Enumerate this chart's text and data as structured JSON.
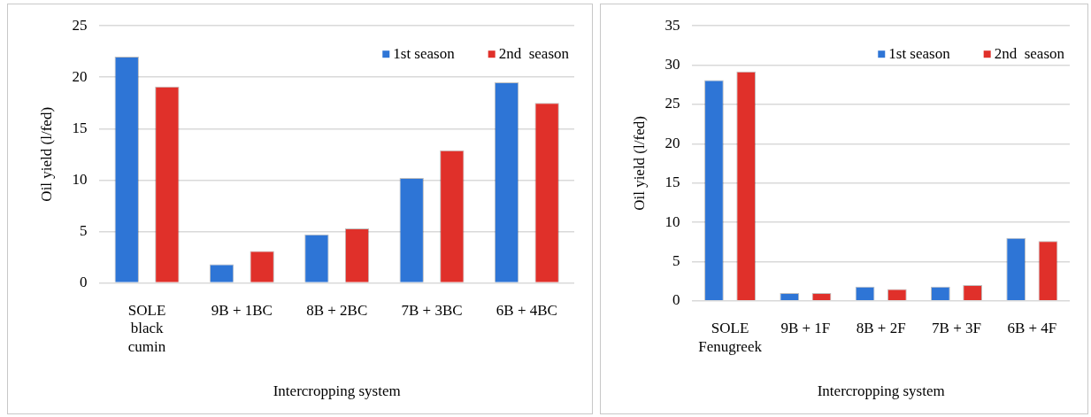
{
  "chart_data": [
    {
      "type": "bar",
      "xlabel": "Intercropping system",
      "ylabel": "Oil yield (l/fed)",
      "categories": [
        "SOLE\nblack\ncumin",
        "9B + 1BC",
        "8B + 2BC",
        "7B + 3BC",
        "6B + 4BC"
      ],
      "series": [
        {
          "name": "1st season",
          "color": "#2e75d6",
          "values": [
            22,
            1.8,
            4.7,
            10.2,
            19.5
          ]
        },
        {
          "name": "2nd  season",
          "color": "#e0302a",
          "values": [
            19.1,
            3.1,
            5.3,
            12.9,
            17.5
          ]
        }
      ],
      "ylim": [
        0,
        25
      ],
      "yticks": [
        0,
        5,
        10,
        15,
        20,
        25
      ],
      "grid": "y",
      "legend": "top right"
    },
    {
      "type": "bar",
      "xlabel": "Intercropping system",
      "ylabel": "Oil yield (l/fed)",
      "categories": [
        "SOLE\nFenugreek",
        "9B + 1F",
        "8B + 2F",
        "7B + 3F",
        "6B + 4F"
      ],
      "series": [
        {
          "name": "1st season",
          "color": "#2e75d6",
          "values": [
            28.1,
            1.0,
            1.8,
            1.8,
            8.0
          ]
        },
        {
          "name": "2nd  season",
          "color": "#e0302a",
          "values": [
            29.2,
            1.0,
            1.5,
            2.0,
            7.6
          ]
        }
      ],
      "ylim": [
        0,
        35
      ],
      "yticks": [
        0,
        5,
        10,
        15,
        20,
        25,
        30,
        35
      ],
      "grid": "y",
      "legend": "top right"
    }
  ]
}
